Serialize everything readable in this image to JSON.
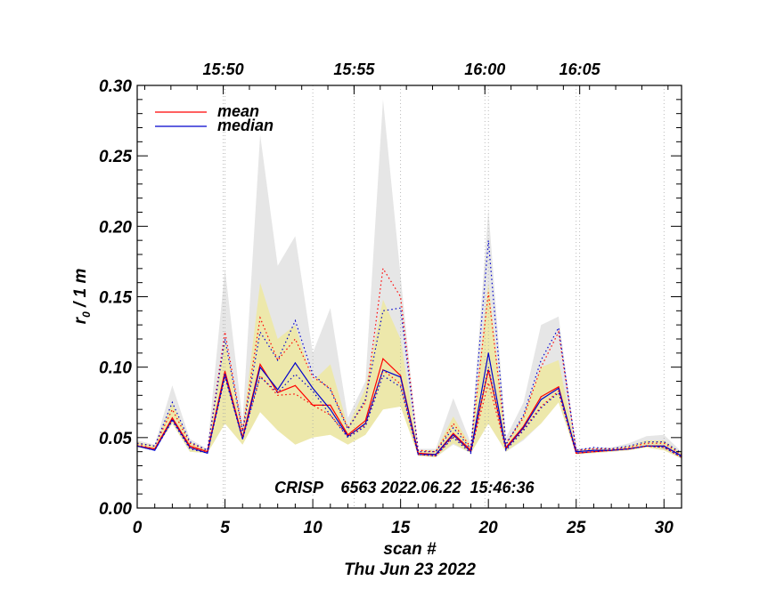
{
  "chart_data": {
    "type": "line",
    "title": "",
    "xlabel": "scan #",
    "ylabel_main": "r",
    "ylabel_sub": "0",
    "ylabel_rest": " / 1 m",
    "date_label": "Thu Jun 23 2022",
    "annotation": "CRISP    6563 2022.06.22  15:46:36",
    "xlim": [
      0,
      31
    ],
    "ylim": [
      0.0,
      0.3
    ],
    "x_ticks": [
      0,
      5,
      10,
      15,
      20,
      25,
      30
    ],
    "x_tick_labels": [
      "0",
      "5",
      "10",
      "15",
      "20",
      "25",
      "30"
    ],
    "y_ticks": [
      0.0,
      0.05,
      0.1,
      0.15,
      0.2,
      0.25,
      0.3
    ],
    "y_tick_labels": [
      "0.00",
      "0.05",
      "0.10",
      "0.15",
      "0.20",
      "0.25",
      "0.30"
    ],
    "top_axis": {
      "ticks": [
        4.9,
        12.35,
        19.8,
        25.2
      ],
      "labels": [
        "15:50",
        "15:55",
        "16:00",
        "16:05"
      ]
    },
    "x": [
      0,
      1,
      2,
      3,
      4,
      5,
      6,
      7,
      8,
      9,
      10,
      11,
      12,
      13,
      14,
      15,
      16,
      17,
      18,
      19,
      20,
      21,
      22,
      23,
      24,
      25,
      26,
      27,
      28,
      29,
      30,
      31
    ],
    "series": [
      {
        "name": "mean",
        "color": "#ff0000",
        "values": [
          0.044,
          0.042,
          0.064,
          0.044,
          0.04,
          0.097,
          0.05,
          0.102,
          0.082,
          0.087,
          0.073,
          0.073,
          0.052,
          0.062,
          0.106,
          0.094,
          0.039,
          0.038,
          0.053,
          0.041,
          0.098,
          0.043,
          0.058,
          0.079,
          0.086,
          0.039,
          0.04,
          0.041,
          0.042,
          0.044,
          0.044,
          0.037
        ]
      },
      {
        "name": "median",
        "color": "#0000cc",
        "values": [
          0.044,
          0.041,
          0.063,
          0.043,
          0.039,
          0.095,
          0.049,
          0.1,
          0.084,
          0.103,
          0.085,
          0.07,
          0.051,
          0.06,
          0.098,
          0.093,
          0.038,
          0.038,
          0.052,
          0.04,
          0.11,
          0.042,
          0.057,
          0.077,
          0.085,
          0.04,
          0.041,
          0.041,
          0.042,
          0.044,
          0.044,
          0.037
        ]
      },
      {
        "name": "mean upper",
        "color": "#ff0000",
        "dotted": true,
        "values": [
          0.046,
          0.044,
          0.07,
          0.046,
          0.041,
          0.125,
          0.055,
          0.135,
          0.105,
          0.12,
          0.093,
          0.085,
          0.057,
          0.075,
          0.17,
          0.15,
          0.041,
          0.04,
          0.06,
          0.043,
          0.153,
          0.046,
          0.064,
          0.1,
          0.125,
          0.041,
          0.042,
          0.042,
          0.043,
          0.046,
          0.046,
          0.038
        ]
      },
      {
        "name": "median upper",
        "color": "#0000cc",
        "dotted": true,
        "values": [
          0.046,
          0.044,
          0.075,
          0.047,
          0.041,
          0.12,
          0.054,
          0.125,
          0.105,
          0.133,
          0.095,
          0.084,
          0.056,
          0.077,
          0.14,
          0.142,
          0.04,
          0.04,
          0.057,
          0.042,
          0.19,
          0.045,
          0.066,
          0.105,
          0.128,
          0.041,
          0.043,
          0.042,
          0.044,
          0.047,
          0.047,
          0.039
        ]
      },
      {
        "name": "mean lower",
        "color": "#ff0000",
        "dotted": true,
        "values": [
          0.045,
          0.042,
          0.063,
          0.043,
          0.04,
          0.094,
          0.05,
          0.094,
          0.08,
          0.081,
          0.073,
          0.066,
          0.051,
          0.059,
          0.098,
          0.088,
          0.038,
          0.037,
          0.051,
          0.04,
          0.089,
          0.042,
          0.056,
          0.072,
          0.083,
          0.039,
          0.04,
          0.041,
          0.042,
          0.044,
          0.043,
          0.036
        ]
      },
      {
        "name": "median lower",
        "color": "#0000cc",
        "dotted": true,
        "values": [
          0.044,
          0.041,
          0.062,
          0.042,
          0.039,
          0.093,
          0.049,
          0.093,
          0.082,
          0.095,
          0.083,
          0.066,
          0.05,
          0.058,
          0.094,
          0.086,
          0.038,
          0.037,
          0.05,
          0.039,
          0.1,
          0.041,
          0.055,
          0.071,
          0.082,
          0.039,
          0.04,
          0.041,
          0.042,
          0.044,
          0.043,
          0.036
        ]
      }
    ],
    "bands": [
      {
        "name": "full range",
        "color": "#e6e6e6",
        "lower": [
          0.043,
          0.041,
          0.06,
          0.04,
          0.039,
          0.06,
          0.045,
          0.07,
          0.06,
          0.06,
          0.055,
          0.06,
          0.048,
          0.055,
          0.07,
          0.075,
          0.037,
          0.036,
          0.045,
          0.039,
          0.06,
          0.04,
          0.048,
          0.06,
          0.075,
          0.038,
          0.039,
          0.04,
          0.041,
          0.043,
          0.041,
          0.035
        ],
        "upper": [
          0.048,
          0.045,
          0.087,
          0.049,
          0.042,
          0.17,
          0.062,
          0.265,
          0.172,
          0.193,
          0.11,
          0.142,
          0.064,
          0.09,
          0.29,
          0.165,
          0.042,
          0.042,
          0.078,
          0.046,
          0.212,
          0.05,
          0.075,
          0.13,
          0.136,
          0.042,
          0.043,
          0.043,
          0.046,
          0.051,
          0.052,
          0.04
        ]
      },
      {
        "name": "inner range",
        "color": "#ede8ab",
        "lower": [
          0.043,
          0.041,
          0.06,
          0.04,
          0.039,
          0.06,
          0.045,
          0.068,
          0.055,
          0.045,
          0.05,
          0.052,
          0.045,
          0.052,
          0.07,
          0.072,
          0.037,
          0.036,
          0.046,
          0.039,
          0.06,
          0.04,
          0.049,
          0.06,
          0.075,
          0.038,
          0.039,
          0.04,
          0.041,
          0.043,
          0.041,
          0.035
        ],
        "upper": [
          0.047,
          0.044,
          0.075,
          0.047,
          0.041,
          0.12,
          0.056,
          0.16,
          0.12,
          0.13,
          0.09,
          0.102,
          0.058,
          0.085,
          0.148,
          0.12,
          0.041,
          0.041,
          0.065,
          0.044,
          0.16,
          0.046,
          0.066,
          0.1,
          0.105,
          0.041,
          0.042,
          0.042,
          0.044,
          0.048,
          0.048,
          0.039
        ]
      }
    ],
    "legend": {
      "position": "top-left",
      "entries": [
        {
          "label": "mean",
          "color": "#ff0000"
        },
        {
          "label": "median",
          "color": "#0000cc"
        }
      ]
    }
  }
}
